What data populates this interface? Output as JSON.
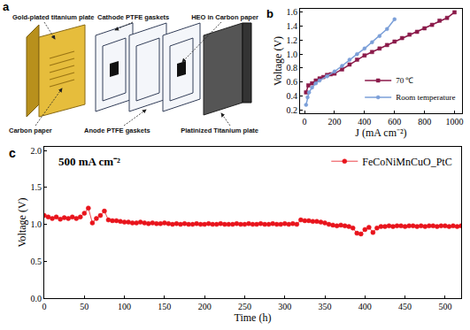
{
  "diagram": {
    "label": "a",
    "parts": {
      "gold_plate": "Gold-plated titanium plate",
      "cathode_gasket": "Cathode PTFE gaskets",
      "heo": "HEO in Carbon paper",
      "carbon_paper": "Carbon paper",
      "anode_gasket": "Anode PTFE gaskets",
      "pt_plate": "Platinized Titanium plate"
    }
  },
  "chart_data": [
    {
      "type": "line",
      "x_label": "J (mA cm⁻²)",
      "y_label": "Voltage (V)",
      "annotations": [
        {
          "text": "b"
        }
      ],
      "xlim": [
        -30,
        1050
      ],
      "xticks": [
        0,
        200,
        400,
        600,
        800,
        1000
      ],
      "ylim": [
        0.15,
        1.65
      ],
      "yticks": [
        0.2,
        0.4,
        0.6,
        0.8,
        {
          "value": 1.0,
          "label": "1.0"
        },
        1.2,
        1.4,
        1.6
      ],
      "legend": "lower right",
      "grid": false,
      "series": [
        {
          "name": "70 ℃",
          "color": "#8b1a4a",
          "marker": "square",
          "x": [
            10,
            25,
            50,
            75,
            100,
            125,
            150,
            175,
            200,
            250,
            300,
            350,
            400,
            450,
            500,
            550,
            600,
            650,
            700,
            750,
            800,
            850,
            900,
            950,
            1000
          ],
          "values": [
            0.45,
            0.55,
            0.58,
            0.62,
            0.65,
            0.67,
            0.7,
            0.71,
            0.72,
            0.78,
            0.85,
            0.92,
            0.98,
            1.03,
            1.08,
            1.13,
            1.18,
            1.23,
            1.28,
            1.32,
            1.37,
            1.42,
            1.48,
            1.52,
            1.6
          ]
        },
        {
          "name": "Room temperature",
          "color": "#7b9fd8",
          "marker": "circle",
          "x": [
            10,
            20,
            30,
            50,
            75,
            100,
            150,
            200,
            250,
            300,
            350,
            400,
            450,
            500,
            550,
            600
          ],
          "values": [
            0.27,
            0.38,
            0.45,
            0.52,
            0.58,
            0.62,
            0.68,
            0.75,
            0.83,
            0.92,
            1.0,
            1.08,
            1.17,
            1.26,
            1.36,
            1.5
          ]
        }
      ]
    },
    {
      "type": "scatter",
      "x_label": "Time (h)",
      "y_label": "Voltage (V)",
      "annotations": [
        {
          "text": "c"
        },
        {
          "text": "500 mA cm⁻²"
        }
      ],
      "xlim": [
        0,
        520
      ],
      "xticks": [
        0,
        50,
        100,
        150,
        200,
        250,
        300,
        350,
        400,
        450,
        500
      ],
      "ylim": [
        0,
        2.05
      ],
      "yticks": [
        {
          "value": 0,
          "label": "0.0"
        },
        0.5,
        {
          "value": 1.0,
          "label": "1.0"
        },
        1.5,
        {
          "value": 2.0,
          "label": "2.0"
        }
      ],
      "legend": "upper right",
      "grid": false,
      "series": [
        {
          "name": "FeCoNiMnCuO_PtC",
          "color": "#e8141c",
          "marker": "circle",
          "x": [
            0,
            5,
            10,
            15,
            20,
            25,
            30,
            35,
            40,
            45,
            50,
            55,
            60,
            65,
            70,
            75,
            80,
            85,
            90,
            95,
            100,
            105,
            110,
            115,
            120,
            125,
            130,
            135,
            140,
            145,
            150,
            155,
            160,
            165,
            170,
            175,
            180,
            185,
            190,
            195,
            200,
            205,
            210,
            215,
            220,
            225,
            230,
            235,
            240,
            245,
            250,
            255,
            260,
            265,
            270,
            275,
            280,
            285,
            290,
            295,
            300,
            305,
            310,
            315,
            320,
            325,
            330,
            335,
            340,
            345,
            350,
            355,
            360,
            365,
            370,
            375,
            380,
            385,
            390,
            395,
            400,
            405,
            410,
            415,
            420,
            425,
            430,
            435,
            440,
            445,
            450,
            455,
            460,
            465,
            470,
            475,
            480,
            485,
            490,
            495,
            500,
            505,
            510,
            515,
            520
          ],
          "values": [
            1.12,
            1.1,
            1.08,
            1.1,
            1.07,
            1.09,
            1.08,
            1.1,
            1.08,
            1.1,
            1.15,
            1.22,
            1.02,
            1.08,
            1.12,
            1.18,
            1.06,
            1.05,
            1.05,
            1.04,
            1.03,
            1.03,
            1.02,
            1.02,
            1.03,
            1.02,
            1.01,
            1.02,
            1.01,
            1.01,
            1.02,
            1.01,
            1.0,
            1.01,
            1.0,
            1.01,
            1.0,
            1.0,
            1.01,
            1.0,
            1.0,
            1.01,
            1.0,
            1.0,
            1.01,
            1.0,
            1.0,
            1.0,
            1.01,
            1.0,
            1.0,
            1.01,
            1.0,
            1.0,
            1.01,
            1.0,
            1.0,
            1.01,
            1.0,
            1.0,
            1.01,
            1.0,
            1.01,
            1.0,
            1.06,
            1.05,
            1.05,
            1.04,
            1.04,
            1.03,
            1.02,
            1.0,
            0.99,
            0.98,
            0.99,
            0.98,
            0.97,
            0.95,
            0.88,
            0.87,
            0.93,
            0.96,
            0.89,
            0.95,
            0.97,
            0.97,
            0.98,
            0.97,
            0.98,
            0.98,
            0.97,
            0.98,
            0.98,
            0.97,
            0.98,
            0.97,
            0.98,
            0.98,
            0.97,
            0.98,
            0.98,
            0.97,
            0.98,
            0.97,
            0.98
          ]
        }
      ]
    }
  ]
}
